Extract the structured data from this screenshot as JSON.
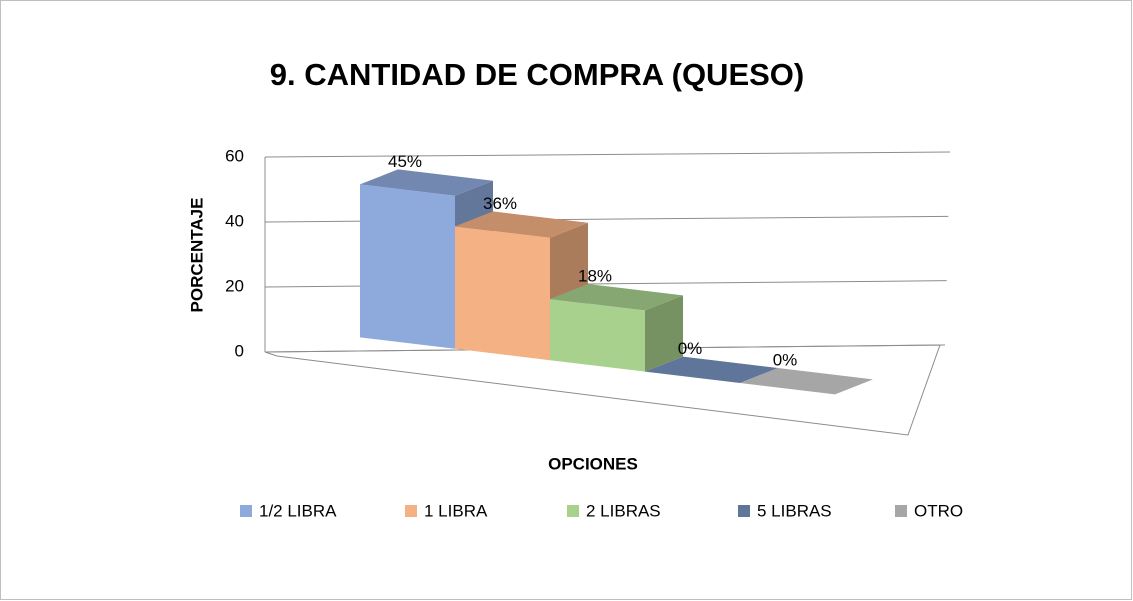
{
  "chart_data": {
    "type": "bar3d",
    "title": "9. CANTIDAD DE COMPRA (QUESO)",
    "y_label": "PORCENTAJE",
    "x_label": "OPCIONES",
    "series": [
      {
        "name": "1/2 LIBRA",
        "color": "#8eaadc",
        "values": [
          45
        ],
        "value_labels": [
          "45%"
        ]
      },
      {
        "name": "1 LIBRA",
        "color": "#f4b183",
        "values": [
          36
        ],
        "value_labels": [
          "36%"
        ]
      },
      {
        "name": "2 LIBRAS",
        "color": "#a9d18e",
        "values": [
          18
        ],
        "value_labels": [
          "18%"
        ]
      },
      {
        "name": "5 LIBRAS",
        "color": "#5f7599",
        "values": [
          0
        ],
        "value_labels": [
          "0%"
        ]
      },
      {
        "name": "OTRO",
        "color": "#a6a6a6",
        "values": [
          0
        ],
        "value_labels": [
          "0%"
        ]
      }
    ],
    "ylim": [
      0,
      60
    ],
    "yticks": [
      0,
      20,
      40,
      60
    ],
    "grid": true,
    "legend": "bottom"
  }
}
